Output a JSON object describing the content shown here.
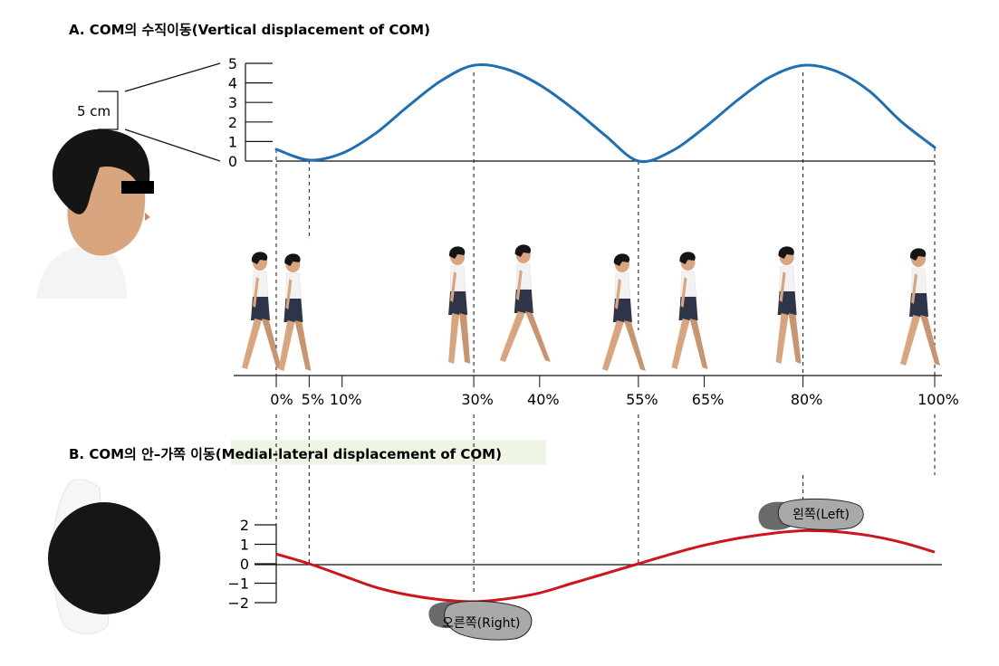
{
  "chart_data": [
    {
      "type": "line",
      "title": "A. COM의 수직이동(Vertical displacement of COM)",
      "scale_label": "5 cm",
      "ylim": [
        0,
        5
      ],
      "yticks": [
        "5",
        "4",
        "3",
        "2",
        "1",
        "0"
      ],
      "xlim": [
        0,
        100
      ],
      "series": [
        {
          "color": "#1f6fb2",
          "x": [
            0,
            5,
            10,
            15,
            20,
            25,
            30,
            35,
            40,
            45,
            50,
            55,
            60,
            65,
            70,
            75,
            80,
            85,
            90,
            95,
            100
          ],
          "y": [
            0.6,
            0.05,
            0.4,
            1.4,
            2.8,
            4.1,
            4.9,
            4.7,
            3.9,
            2.7,
            1.3,
            0.0,
            0.5,
            1.7,
            3.1,
            4.3,
            4.9,
            4.6,
            3.6,
            2.0,
            0.7
          ]
        }
      ],
      "markers": [
        0,
        5,
        30,
        55,
        80,
        100
      ]
    },
    {
      "type": "line",
      "title": "B. COM의  안–가쪽 이동(Medial-lateral displacement  of COM)",
      "ylim": [
        -2,
        2
      ],
      "yticks": [
        "2",
        "1",
        "0",
        "−1",
        "−2"
      ],
      "xlim": [
        0,
        100
      ],
      "series": [
        {
          "color": "#d0141c",
          "x": [
            0,
            5,
            10,
            15,
            20,
            25,
            30,
            35,
            40,
            45,
            50,
            55,
            60,
            65,
            70,
            75,
            80,
            85,
            90,
            95,
            100
          ],
          "y": [
            0.5,
            0.0,
            -0.6,
            -1.2,
            -1.6,
            -1.85,
            -1.95,
            -1.8,
            -1.5,
            -1.0,
            -0.5,
            0.0,
            0.5,
            0.95,
            1.3,
            1.55,
            1.7,
            1.65,
            1.45,
            1.1,
            0.6
          ]
        }
      ],
      "markers": [
        0,
        5,
        30,
        55,
        80,
        100
      ]
    }
  ],
  "gait_axis": {
    "labels": [
      {
        "pct": 0,
        "text": "0%"
      },
      {
        "pct": 5,
        "text": "5%"
      },
      {
        "pct": 10,
        "text": "10%"
      },
      {
        "pct": 30,
        "text": "30%"
      },
      {
        "pct": 40,
        "text": "40%"
      },
      {
        "pct": 55,
        "text": "55%"
      },
      {
        "pct": 65,
        "text": "65%"
      },
      {
        "pct": 80,
        "text": "80%"
      },
      {
        "pct": 100,
        "text": "100%"
      }
    ]
  },
  "walker_positions": [
    0,
    5,
    30,
    40,
    55,
    65,
    80,
    100
  ],
  "footprints": {
    "left": "왼쪽(Left)",
    "right": "오른쪽(Right)"
  },
  "colors": {
    "vertical_curve": "#1f6fb2",
    "lateral_curve": "#d0141c",
    "title_b_highlight": "#eef5e4",
    "skin": "#d9a57f",
    "hair": "#151515",
    "shorts": "#2f3548",
    "shoe_gray": "#9a9a9a",
    "shoe_dark": "#6a6a6a"
  }
}
